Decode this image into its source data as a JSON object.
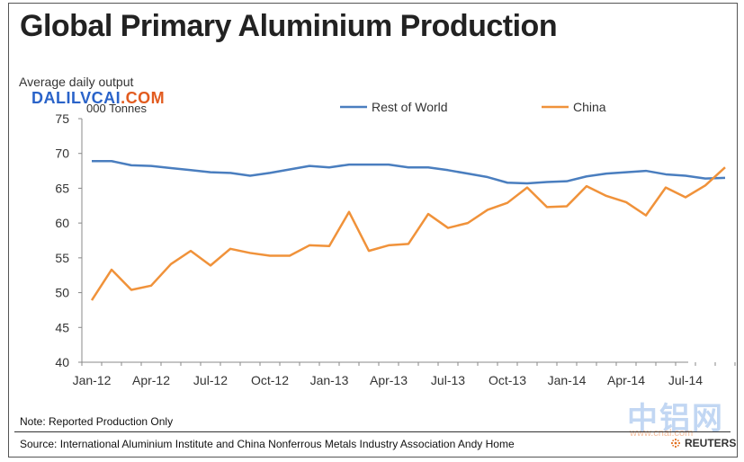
{
  "title": "Global Primary Aluminium Production",
  "watermark": {
    "blue": "DALILVCAI",
    "orange": ".COM",
    "cn": "中铝网",
    "cnal": "www.cnal.com"
  },
  "note": "Note: Reported Production Only",
  "source": "Source: International  Aluminium Institute and China  Nonferrous Metals Industry Association   Andy Home",
  "reuters": "REUTERS",
  "colors": {
    "rest_of_world": "#4a7ebf",
    "china": "#f0923a"
  },
  "chart_data": {
    "type": "line",
    "ylabel": "Average daily output",
    "ylabel_unit": "000 Tonnes",
    "ylim": [
      40,
      75
    ],
    "yticks": [
      40,
      45,
      50,
      55,
      60,
      65,
      70,
      75
    ],
    "x": [
      "Jan-12",
      "Feb-12",
      "Mar-12",
      "Apr-12",
      "May-12",
      "Jun-12",
      "Jul-12",
      "Aug-12",
      "Sep-12",
      "Oct-12",
      "Nov-12",
      "Dec-12",
      "Jan-13",
      "Feb-13",
      "Mar-13",
      "Apr-13",
      "May-13",
      "Jun-13",
      "Jul-13",
      "Aug-13",
      "Sep-13",
      "Oct-13",
      "Nov-13",
      "Dec-13",
      "Jan-14",
      "Feb-14",
      "Mar-14",
      "Apr-14",
      "May-14",
      "Jun-14",
      "Jul-14",
      "Aug-14",
      "Sep-14"
    ],
    "xtick_labels": [
      "Jan-12",
      "Apr-12",
      "Jul-12",
      "Oct-12",
      "Jan-13",
      "Apr-13",
      "Jul-13",
      "Oct-13",
      "Jan-14",
      "Apr-14",
      "Jul-14"
    ],
    "legend_position": "top",
    "grid": false,
    "series": [
      {
        "name": "Rest of World",
        "values": [
          68.9,
          68.9,
          68.3,
          68.2,
          67.9,
          67.6,
          67.3,
          67.2,
          66.8,
          67.2,
          67.7,
          68.2,
          68.0,
          68.4,
          68.4,
          68.4,
          68.0,
          68.0,
          67.6,
          67.1,
          66.6,
          65.8,
          65.7,
          65.9,
          66.0,
          66.7,
          67.1,
          67.3,
          67.5,
          67.0,
          66.8,
          66.4,
          66.5
        ]
      },
      {
        "name": "China",
        "values": [
          48.9,
          53.3,
          50.4,
          51.0,
          54.1,
          56.0,
          53.9,
          56.3,
          55.7,
          55.3,
          55.3,
          56.8,
          56.7,
          61.6,
          56.0,
          56.8,
          57.0,
          61.3,
          59.3,
          60.0,
          61.9,
          62.9,
          65.1,
          62.3,
          62.4,
          65.3,
          63.9,
          63.0,
          61.1,
          65.1,
          63.7,
          65.4,
          68.0
        ]
      }
    ]
  }
}
